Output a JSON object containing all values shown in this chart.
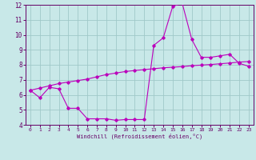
{
  "xlabel": "Windchill (Refroidissement éolien,°C)",
  "xlim": [
    -0.5,
    23.5
  ],
  "ylim": [
    4,
    12
  ],
  "xticks": [
    0,
    1,
    2,
    3,
    4,
    5,
    6,
    7,
    8,
    9,
    10,
    11,
    12,
    13,
    14,
    15,
    16,
    17,
    18,
    19,
    20,
    21,
    22,
    23
  ],
  "yticks": [
    4,
    5,
    6,
    7,
    8,
    9,
    10,
    11,
    12
  ],
  "bg_color": "#c8e8e8",
  "line_color": "#bb00bb",
  "grid_color": "#a0c8c8",
  "line1_x": [
    0,
    1,
    2,
    3,
    4,
    5,
    6,
    7,
    8,
    9,
    10,
    11,
    12,
    13,
    14,
    15,
    16,
    17,
    18,
    19,
    20,
    21,
    22,
    23
  ],
  "line1_y": [
    6.3,
    5.8,
    6.5,
    6.4,
    5.1,
    5.1,
    4.4,
    4.4,
    4.4,
    4.3,
    4.35,
    4.35,
    4.35,
    9.3,
    9.8,
    11.9,
    12.1,
    9.7,
    8.5,
    8.5,
    8.6,
    8.7,
    8.1,
    7.9
  ],
  "line2_x": [
    0,
    1,
    2,
    3,
    4,
    5,
    6,
    7,
    8,
    9,
    10,
    11,
    12,
    13,
    14,
    15,
    16,
    17,
    18,
    19,
    20,
    21,
    22,
    23
  ],
  "line2_y": [
    6.3,
    6.45,
    6.6,
    6.75,
    6.85,
    6.95,
    7.05,
    7.2,
    7.35,
    7.45,
    7.55,
    7.62,
    7.68,
    7.74,
    7.8,
    7.84,
    7.88,
    7.94,
    7.98,
    8.02,
    8.07,
    8.12,
    8.18,
    8.22
  ],
  "font_color": "#660066",
  "tick_fontsize_x": 4.5,
  "tick_fontsize_y": 5.5,
  "xlabel_fontsize": 5.0,
  "linewidth": 0.8,
  "markersize": 1.8
}
